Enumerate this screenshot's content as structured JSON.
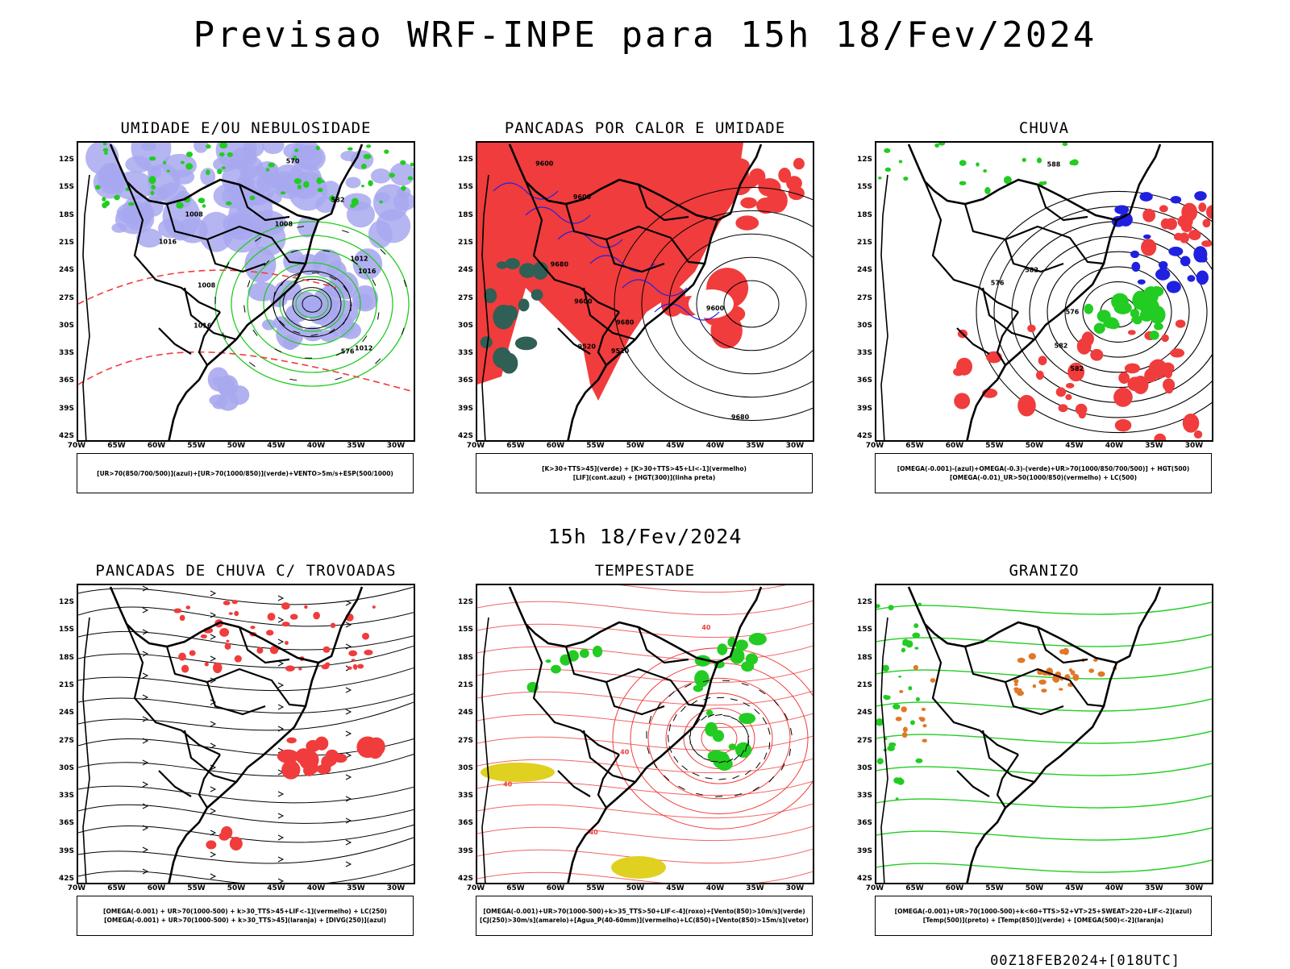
{
  "header": {
    "title": "Previsao WRF-INPE  para 15h 18/Fev/2024"
  },
  "middle": {
    "time_label": "15h 18/Fev/2024"
  },
  "footer": {
    "run_label": "00Z18FEB2024+[018UTC]"
  },
  "axes": {
    "lat_labels": [
      "12S",
      "15S",
      "18S",
      "21S",
      "24S",
      "27S",
      "30S",
      "33S",
      "36S",
      "39S",
      "42S"
    ],
    "lon_labels": [
      "70W",
      "65W",
      "60W",
      "55W",
      "50W",
      "45W",
      "40W",
      "35W",
      "30W"
    ]
  },
  "panels": [
    {
      "title": "UMIDADE E/OU NEBULOSIDADE",
      "legend": [
        "[UR>70(850/700/500)](azul)+[UR>70(1000/850)](verde)+VENTO>5m/s+ESP(500/1000)"
      ],
      "contour_labels": [
        "1008",
        "1012",
        "1008",
        "1016",
        "1008",
        "1012",
        "1016",
        "570",
        "576",
        "582",
        "1016"
      ]
    },
    {
      "title": "PANCADAS POR CALOR E UMIDADE",
      "legend": [
        "[K>30+TTS>45](verde) + [K>30+TTS>45+LI<-1](vermelho)",
        "[LIF](cont.azul) + [HGT(300)](linha preta)"
      ],
      "contour_labels": [
        "9680",
        "9680",
        "9600",
        "9600",
        "9680",
        "9600",
        "9520",
        "9600",
        "9520"
      ]
    },
    {
      "title": "CHUVA",
      "legend": [
        "[OMEGA(-0.001)-(azul)+OMEGA(-0.3)-(verde)+UR>70(1000/850/700/500)] + HGT(500)",
        "[OMEGA(-0.01)_UR>50(1000/850)(vermelho) + LC(500)"
      ],
      "contour_labels": [
        "588",
        "582",
        "582",
        "582",
        "576",
        "576"
      ]
    },
    {
      "title": "PANCADAS DE CHUVA C/ TROVOADAS",
      "legend": [
        "[OMEGA(-0.001) + UR>70(1000-500) + k>30_TTS>45+LIF<-1](vermelho) + LC(250)",
        "[OMEGA(-0.001) + UR>70(1000-500) + k>30_TTS>45](laranja) + [DIVG(250)](azul)"
      ],
      "contour_labels": []
    },
    {
      "title": "TEMPESTADE",
      "legend": [
        "[OMEGA(-0.001)+UR>70(1000-500)+k>35_TTS>50+LIF<-4](roxo)+[Vento(850)>10m/s](verde)",
        "[CJ(250)>30m/s](amarelo)+[Agua_P(40-60mm)](vermelho)+LC(850)+[Vento(850)>15m/s](vetor)"
      ],
      "contour_labels": [
        "40",
        "40",
        "40",
        "40"
      ]
    },
    {
      "title": "GRANIZO",
      "legend": [
        "[OMEGA(-0.001)+UR>70(1000-500)+k<60+TTS>52+VT>25+SWEAT>220+LIF<-2](azul)",
        "[Temp(500)](preto) + [Temp(850)](verde) + [OMEGA(500)<-2](laranja)"
      ],
      "contour_labels": []
    }
  ],
  "colors": {
    "humid_blue": "#a8a8f0",
    "humid_green": "#22cc22",
    "red": "#f03c3c",
    "teal": "#2f5f55",
    "blue": "#2020e0",
    "yellow": "#e0d020",
    "orange": "#e07828"
  }
}
